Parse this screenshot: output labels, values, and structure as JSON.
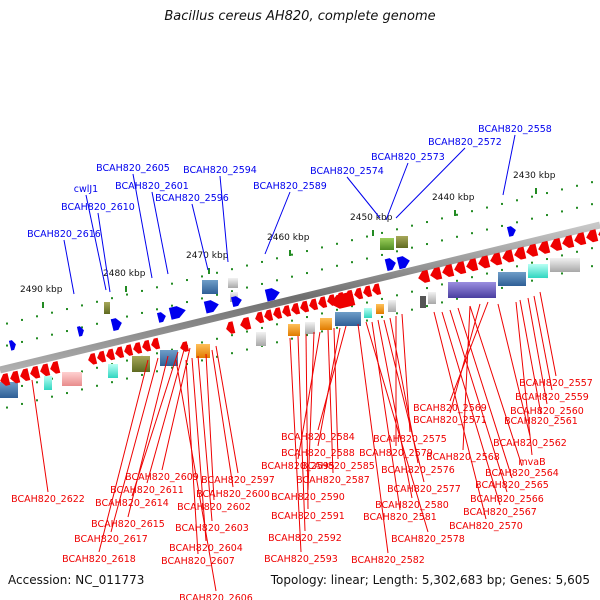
{
  "title": "Bacillus cereus AH820, complete genome",
  "footer": {
    "accession_label": "Accession:",
    "accession": "NC_011773",
    "topology_label": "Topology:",
    "topology": "linear",
    "length_label": "Length:",
    "length": "5,302,683 bp",
    "genes_label": "Genes:",
    "genes": "5,605"
  },
  "colors": {
    "forward_strand": "#0000ee",
    "reverse_strand": "#ee0000",
    "ruler": "#888888",
    "tick": "#228b22"
  },
  "scale_labels": [
    "2430 kbp",
    "2440 kbp",
    "2450 kbp",
    "2460 kbp",
    "2470 kbp",
    "2480 kbp",
    "2490 kbp"
  ],
  "genes_top": [
    "BCAH820_2558",
    "BCAH820_2572",
    "BCAH820_2573",
    "BCAH820_2574",
    "BCAH820_2589",
    "BCAH820_2594",
    "BCAH820_2596",
    "BCAH820_2601",
    "BCAH820_2605",
    "cwlJ1",
    "BCAH820_2610",
    "BCAH820_2616"
  ],
  "genes_bottom": [
    "BCAH820_2557",
    "BCAH820_2559",
    "BCAH820_2560",
    "BCAH820_2561",
    "BCAH820_2562",
    "BCAH820_2569",
    "BCAH820_2571",
    "BCAH820_2568",
    "mvaB",
    "BCAH820_2564",
    "BCAH820_2565",
    "BCAH820_2566",
    "BCAH820_2567",
    "BCAH820_2570",
    "BCAH820_2575",
    "BCAH820_2579",
    "BCAH820_2576",
    "BCAH820_2577",
    "BCAH820_2580",
    "BCAH820_2581",
    "BCAH820_2578",
    "BCAH820_2582",
    "BCAH820_2584",
    "BCAH820_2588",
    "BCAH820_2585",
    "BCAH820_2587",
    "BCAH820_2595",
    "BCAH820_2590",
    "BCAH820_2591",
    "BCAH820_2592",
    "BCAH820_2593",
    "BCAH820_2609",
    "BCAH820_2597",
    "BCAH820_2611",
    "BCAH820_2600",
    "BCAH820_2614",
    "BCAH820_2602",
    "BCAH820_2622",
    "BCAH820_2615",
    "BCAH820_2603",
    "BCAH820_2617",
    "BCAH820_2604",
    "BCAH820_2618",
    "BCAH820_2607",
    "BCAH820_2606"
  ]
}
